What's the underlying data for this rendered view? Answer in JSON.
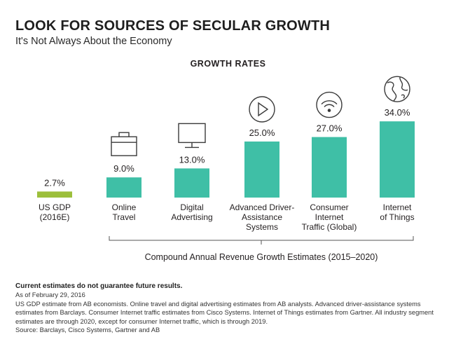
{
  "header": {
    "title": "LOOK FOR SOURCES OF SECULAR GROWTH",
    "subtitle": "It's Not Always About the Economy"
  },
  "chart_data": {
    "type": "bar",
    "title": "GROWTH RATES",
    "categories": [
      [
        "US GDP",
        "(2016E)"
      ],
      [
        "Online",
        "Travel"
      ],
      [
        "Digital",
        "Advertising"
      ],
      [
        "Advanced Driver-",
        "Assistance",
        "Systems"
      ],
      [
        "Consumer",
        "Internet",
        "Traffic (Global)"
      ],
      [
        "Internet",
        "of Things"
      ]
    ],
    "values": [
      2.7,
      9.0,
      13.0,
      25.0,
      27.0,
      34.0
    ],
    "value_labels": [
      "2.7%",
      "9.0%",
      "13.0%",
      "25.0%",
      "27.0%",
      "34.0%"
    ],
    "icons": [
      "",
      "suitcase-icon",
      "monitor-icon",
      "play-button-icon",
      "wifi-icon",
      "globe-icon"
    ],
    "colors": [
      "#9cbf3b",
      "#3fbfa6",
      "#3fbfa6",
      "#3fbfa6",
      "#3fbfa6",
      "#3fbfa6"
    ],
    "bracket_label": "Compound Annual Revenue Growth Estimates (2015–2020)",
    "grid": false
  },
  "footnotes": {
    "disclaimer": "Current estimates do not guarantee future results.",
    "as_of": "As of February 29, 2016",
    "notes": "US GDP estimate from AB economists. Online travel and digital advertising estimates from AB analysts. Advanced driver-assistance systems estimates from Barclays. Consumer Internet traffic estimates from Cisco Systems. Internet of Things estimates from Gartner. All industry segment estimates are through 2020, except for consumer Internet traffic, which is through 2019.",
    "source": "Source: Barclays, Cisco Systems, Gartner and AB"
  }
}
